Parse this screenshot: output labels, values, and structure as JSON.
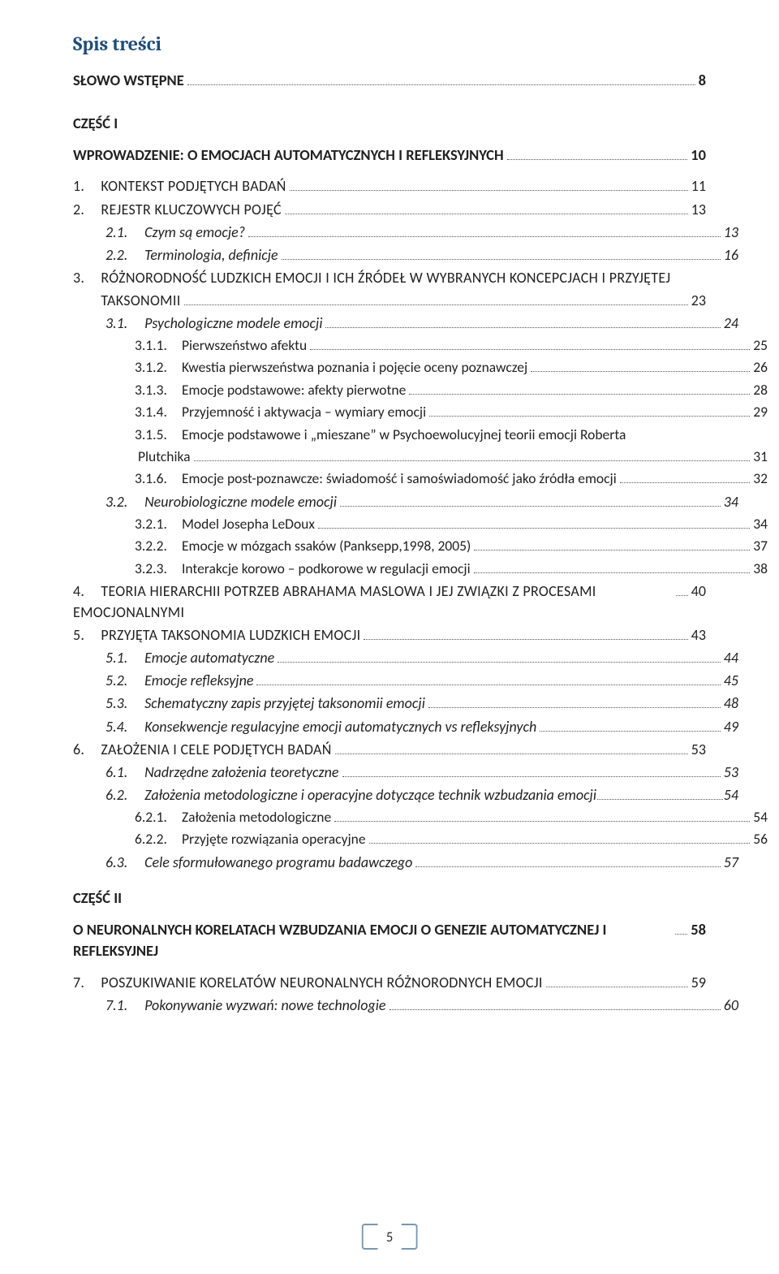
{
  "heading": "Spis treści",
  "page_number": "5",
  "colors": {
    "heading": "#1f4e79",
    "text": "#222222",
    "bracket": "#7a97b1",
    "background": "#ffffff"
  },
  "entries": [
    {
      "level": "lvl0",
      "label": "SŁOWO WSTĘPNE",
      "page": "8"
    },
    {
      "level": "lvl1",
      "label": "CZĘŚĆ I",
      "nopage": true
    },
    {
      "level": "lvl0",
      "label": "WPROWADZENIE: O EMOCJACH AUTOMATYCZNYCH I REFLEKSYJNYCH",
      "page": "10"
    },
    {
      "level": "lvl2-num",
      "num": "1.",
      "label": "KONTEKST PODJĘTYCH BADAŃ",
      "page": "11",
      "smallcaps": true
    },
    {
      "level": "lvl2-num",
      "num": "2.",
      "label": "REJESTR KLUCZOWYCH POJĘĆ",
      "page": "13",
      "smallcaps": true
    },
    {
      "level": "lvl3",
      "num": "2.1.",
      "label": "Czym są emocje?",
      "page": "13"
    },
    {
      "level": "lvl3",
      "num": "2.2.",
      "label": "Terminologia, definicje",
      "page": "16"
    },
    {
      "level": "lvl2-num",
      "num": "3.",
      "label": "RÓŻNORODNOŚĆ LUDZKICH EMOCJI I ICH ŹRÓDEŁ W WYBRANYCH KONCEPCJACH I PRZYJĘTEJ",
      "smallcaps": true,
      "nopage": true
    },
    {
      "level": "lvl2-num",
      "num": "",
      "label": "TAKSONOMII",
      "page": "23",
      "smallcaps": true
    },
    {
      "level": "lvl3",
      "num": "3.1.",
      "label": "Psychologiczne modele emocji",
      "page": "24"
    },
    {
      "level": "lvl4",
      "num": "3.1.1.",
      "label": "Pierwszeństwo afektu",
      "page": "25"
    },
    {
      "level": "lvl4",
      "num": "3.1.2.",
      "label": "Kwestia pierwszeństwa poznania i pojęcie oceny poznawczej",
      "page": "26"
    },
    {
      "level": "lvl4",
      "num": "3.1.3.",
      "label": "Emocje podstawowe: afekty pierwotne",
      "page": "28"
    },
    {
      "level": "lvl4",
      "num": "3.1.4.",
      "label": "Przyjemność i aktywacja – wymiary emocji",
      "page": "29"
    },
    {
      "level": "lvl4",
      "num": "3.1.5.",
      "label": "Emocje podstawowe i „mieszane” w Psychoewolucyjnej teorii emocji Roberta",
      "nopage": true
    },
    {
      "level": "lvl4b",
      "num": "",
      "label": "Plutchika",
      "page": "31"
    },
    {
      "level": "lvl4",
      "num": "3.1.6.",
      "label": "Emocje post-poznawcze: świadomość i samoświadomość jako źródła emocji",
      "page": "32"
    },
    {
      "level": "lvl3",
      "num": "3.2.",
      "label": "Neurobiologiczne modele emocji",
      "page": "34"
    },
    {
      "level": "lvl4",
      "num": "3.2.1.",
      "label": "Model Josepha LeDoux",
      "page": "34"
    },
    {
      "level": "lvl4",
      "num": "3.2.2.",
      "label": "Emocje w mózgach ssaków (Panksepp,1998, 2005)",
      "page": "37"
    },
    {
      "level": "lvl4",
      "num": "3.2.3.",
      "label": "Interakcje korowo – podkorowe w regulacji emocji",
      "page": "38"
    },
    {
      "level": "lvl2-num",
      "num": "4.",
      "label": "TEORIA HIERARCHII POTRZEB ABRAHAMA MASLOWA I JEJ ZWIĄZKI Z PROCESAMI EMOCJONALNYMI",
      "page": "40",
      "smallcaps": true
    },
    {
      "level": "lvl2-num",
      "num": "5.",
      "label": "PRZYJĘTA TAKSONOMIA LUDZKICH EMOCJI",
      "page": "43",
      "smallcaps": true
    },
    {
      "level": "lvl3",
      "num": "5.1.",
      "label": "Emocje automatyczne",
      "page": "44"
    },
    {
      "level": "lvl3",
      "num": "5.2.",
      "label": "Emocje refleksyjne",
      "page": "45"
    },
    {
      "level": "lvl3",
      "num": "5.3.",
      "label": "Schematyczny zapis przyjętej taksonomii emocji",
      "page": "48"
    },
    {
      "level": "lvl3",
      "num": "5.4.",
      "label": "Konsekwencje regulacyjne emocji automatycznych vs refleksyjnych",
      "page": "49"
    },
    {
      "level": "lvl2-num",
      "num": "6.",
      "label": "ZAŁOŻENIA I CELE PODJĘTYCH BADAŃ",
      "page": "53",
      "smallcaps": true
    },
    {
      "level": "lvl3",
      "num": "6.1.",
      "label": "Nadrzędne założenia teoretyczne",
      "page": "53"
    },
    {
      "level": "lvl3",
      "num": "6.2.",
      "label": "Założenia metodologiczne i operacyjne dotyczące technik wzbudzania emocji",
      "page": "54",
      "tight": true
    },
    {
      "level": "lvl4",
      "num": "6.2.1.",
      "label": "Założenia metodologiczne",
      "page": "54"
    },
    {
      "level": "lvl4",
      "num": "6.2.2.",
      "label": "Przyjęte rozwiązania operacyjne",
      "page": "56"
    },
    {
      "level": "lvl3",
      "num": "6.3.",
      "label": "Cele sformułowanego programu badawczego",
      "page": "57"
    },
    {
      "level": "lvl1",
      "label": "CZĘŚĆ II",
      "nopage": true
    },
    {
      "level": "lvl0",
      "label": "O NEURONALNYCH KORELATACH WZBUDZANIA EMOCJI O GENEZIE AUTOMATYCZNEJ I REFLEKSYJNEJ",
      "page": "58"
    },
    {
      "level": "lvl2-num",
      "num": "7.",
      "label": "POSZUKIWANIE KORELATÓW NEURONALNYCH RÓŻNORODNYCH EMOCJI",
      "page": "59",
      "smallcaps": true
    },
    {
      "level": "lvl3",
      "num": "7.1.",
      "label": "Pokonywanie wyzwań: nowe technologie",
      "page": "60"
    }
  ]
}
